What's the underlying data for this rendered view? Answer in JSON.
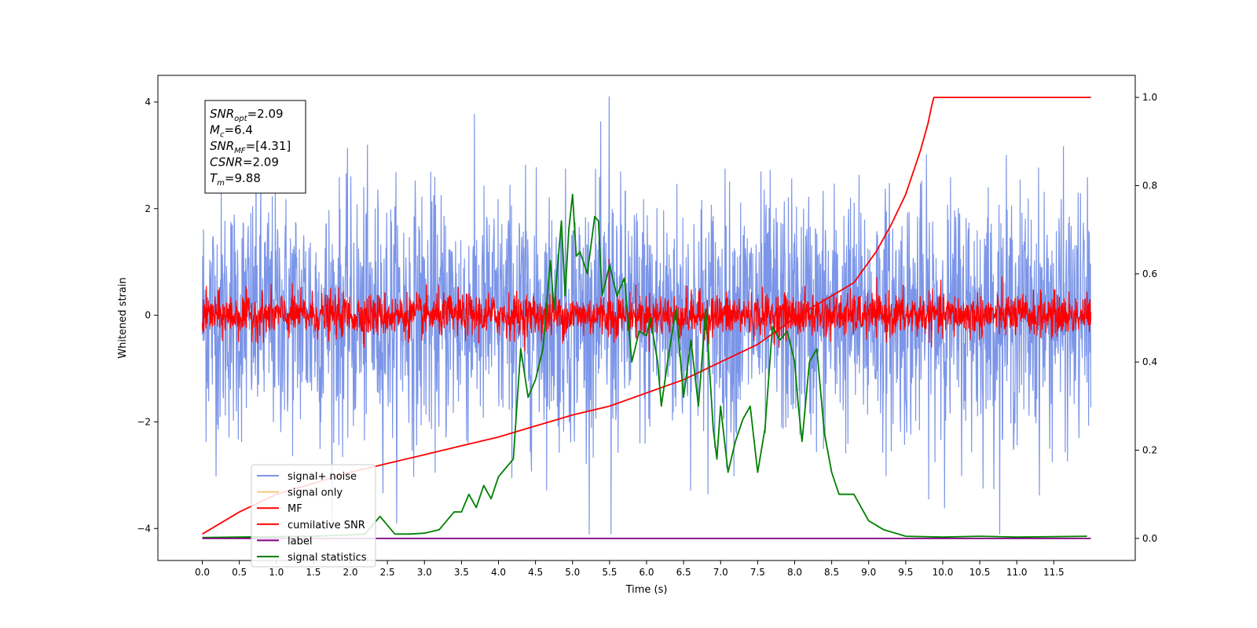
{
  "chart_data": {
    "type": "line",
    "xlabel": "Time (s)",
    "ylabel": "Whitened strain",
    "y2label": "",
    "xlim": [
      -0.6,
      12.6
    ],
    "ylim": [
      -4.6,
      4.5
    ],
    "y2lim": [
      -0.05,
      1.05
    ],
    "x_ticks": [
      "0.0",
      "0.5",
      "1.0",
      "1.5",
      "2.0",
      "2.5",
      "3.0",
      "3.5",
      "4.0",
      "4.5",
      "5.0",
      "5.5",
      "6.0",
      "6.5",
      "7.0",
      "7.5",
      "8.0",
      "8.5",
      "9.0",
      "9.5",
      "10.0",
      "10.5",
      "11.0",
      "11.5"
    ],
    "y_ticks": [
      "−4",
      "−2",
      "0",
      "2",
      "4"
    ],
    "y2_ticks": [
      "0.0",
      "0.2",
      "0.4",
      "0.6",
      "0.8",
      "1.0"
    ],
    "grid": false,
    "legend_position": "lower-left",
    "annotation": {
      "lines": [
        {
          "sym": "SNR",
          "sub": "opt",
          "value": "=2.09"
        },
        {
          "sym": "M",
          "sub": "c",
          "value": "=6.4"
        },
        {
          "sym": "SNR",
          "sub": "MF",
          "value": "=[4.31]"
        },
        {
          "sym": "CSNR",
          "sub": "",
          "value": "=2.09"
        },
        {
          "sym": "T",
          "sub": "m",
          "value": "=9.88"
        }
      ]
    },
    "series": [
      {
        "name": "signal+ noise",
        "color": "#7b95e8",
        "axis": "left",
        "style": "noise",
        "x_range": [
          0,
          12
        ],
        "amplitude_sd": 1.15,
        "extremes_y": [
          4.1,
          -4.1
        ]
      },
      {
        "name": "signal only",
        "color": "#f5c97a",
        "axis": "left",
        "hidden_in_plot": true,
        "values": []
      },
      {
        "name": "MF",
        "color": "#ff0000",
        "axis": "left",
        "style": "noise",
        "x_range": [
          0,
          12
        ],
        "amplitude_sd": 0.2,
        "extremes_y": [
          1.05,
          -0.35
        ]
      },
      {
        "name": "cumilative SNR",
        "color": "#ff0000",
        "axis": "right",
        "x": [
          0,
          0.5,
          1,
          1.5,
          2,
          2.5,
          3,
          3.5,
          4,
          4.5,
          5,
          5.5,
          6,
          6.5,
          7,
          7.5,
          8,
          8.5,
          8.8,
          9.1,
          9.3,
          9.5,
          9.6,
          9.7,
          9.8,
          9.85,
          9.88,
          12
        ],
        "y": [
          0.01,
          0.06,
          0.1,
          0.125,
          0.15,
          0.17,
          0.19,
          0.21,
          0.23,
          0.255,
          0.28,
          0.3,
          0.33,
          0.36,
          0.4,
          0.44,
          0.5,
          0.55,
          0.58,
          0.65,
          0.71,
          0.78,
          0.83,
          0.88,
          0.94,
          0.98,
          1.0,
          1.0
        ]
      },
      {
        "name": "label",
        "color": "#800080",
        "axis": "right",
        "x": [
          0,
          12
        ],
        "y": [
          0.0,
          0.0
        ]
      },
      {
        "name": "signal statistics",
        "color": "#008000",
        "axis": "right",
        "x": [
          0,
          0.5,
          1,
          1.5,
          2,
          2.2,
          2.4,
          2.6,
          2.8,
          3,
          3.2,
          3.4,
          3.5,
          3.6,
          3.7,
          3.8,
          3.9,
          4,
          4.1,
          4.2,
          4.3,
          4.4,
          4.5,
          4.6,
          4.7,
          4.75,
          4.8,
          4.85,
          4.9,
          4.95,
          5,
          5.05,
          5.1,
          5.2,
          5.3,
          5.35,
          5.4,
          5.5,
          5.6,
          5.7,
          5.8,
          5.9,
          6,
          6.05,
          6.1,
          6.15,
          6.2,
          6.3,
          6.4,
          6.5,
          6.6,
          6.7,
          6.8,
          6.9,
          6.95,
          7,
          7.1,
          7.2,
          7.3,
          7.4,
          7.5,
          7.6,
          7.7,
          7.8,
          7.9,
          8,
          8.05,
          8.1,
          8.2,
          8.3,
          8.4,
          8.5,
          8.6,
          8.7,
          8.8,
          8.9,
          9,
          9.2,
          9.5,
          10,
          10.5,
          11,
          11.5,
          11.95
        ],
        "y": [
          0.002,
          0.003,
          0.004,
          0.005,
          0.008,
          0.01,
          0.05,
          0.01,
          0.01,
          0.012,
          0.02,
          0.06,
          0.06,
          0.1,
          0.07,
          0.12,
          0.09,
          0.14,
          0.16,
          0.18,
          0.43,
          0.32,
          0.36,
          0.43,
          0.63,
          0.52,
          0.62,
          0.72,
          0.55,
          0.7,
          0.78,
          0.64,
          0.65,
          0.6,
          0.73,
          0.72,
          0.55,
          0.62,
          0.55,
          0.59,
          0.4,
          0.47,
          0.46,
          0.5,
          0.45,
          0.4,
          0.3,
          0.42,
          0.52,
          0.32,
          0.45,
          0.3,
          0.52,
          0.25,
          0.18,
          0.3,
          0.15,
          0.22,
          0.27,
          0.3,
          0.15,
          0.25,
          0.48,
          0.45,
          0.47,
          0.4,
          0.3,
          0.22,
          0.4,
          0.43,
          0.24,
          0.15,
          0.1,
          0.1,
          0.1,
          0.07,
          0.04,
          0.02,
          0.005,
          0.003,
          0.005,
          0.003,
          0.004,
          0.005
        ]
      }
    ]
  }
}
